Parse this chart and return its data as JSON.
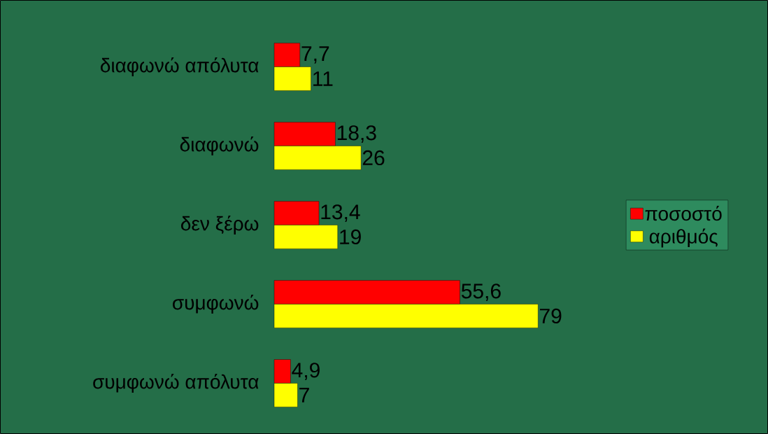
{
  "chart_data": {
    "type": "bar",
    "orientation": "horizontal",
    "legend": "right",
    "categories": [
      "διαφωνώ απόλυτα",
      "διαφωνώ",
      "δεν ξέρω",
      "συμφωνώ",
      "συμφωνώ απόλυτα"
    ],
    "series": [
      {
        "name": "ποσοστό",
        "color": "#ff0000",
        "values": [
          7.7,
          18.3,
          13.4,
          55.6,
          4.9
        ],
        "value_labels": [
          "7,7",
          "18,3",
          "13,4",
          "55,6",
          "4,9"
        ]
      },
      {
        "name": "αριθμός",
        "color": "#ffff00",
        "values": [
          11,
          26,
          19,
          79,
          7
        ],
        "value_labels": [
          "11",
          "26",
          "19",
          "79",
          "7"
        ]
      }
    ]
  }
}
